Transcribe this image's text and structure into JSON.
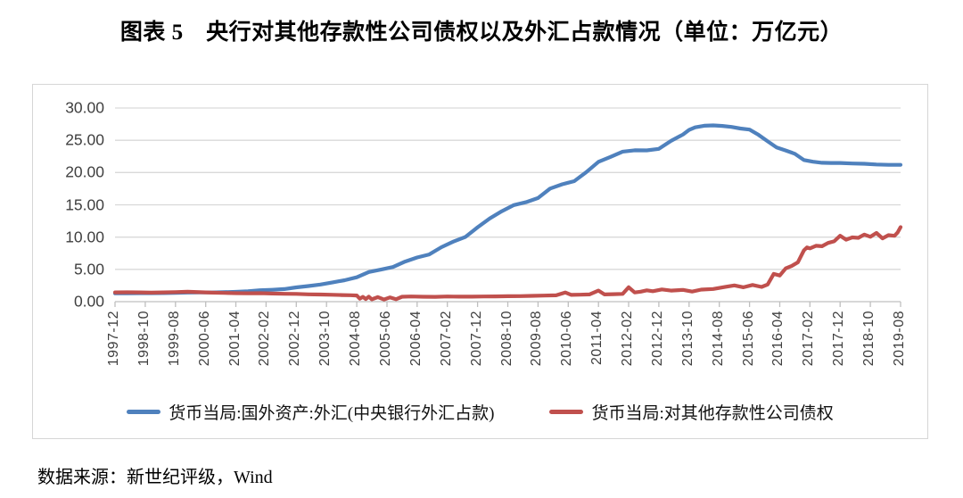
{
  "title": "图表 5　央行对其他存款性公司债权以及外汇占款情况（单位：万亿元）",
  "source": "数据来源：新世纪评级，Wind",
  "colors": {
    "series_fx_blue": "#4f81bd",
    "series_claims_red": "#c0504d",
    "gridline": "#d9d9d9",
    "axis": "#bfbfbf",
    "tick_label": "#3f3f3f"
  },
  "chart_data": {
    "type": "line",
    "title": "图表 5　央行对其他存款性公司债权以及外汇占款情况（单位：万亿元）",
    "unit": "万亿元",
    "xlabel": "",
    "ylabel": "",
    "ylim": [
      0,
      30
    ],
    "y_ticks": [
      "0.00",
      "5.00",
      "10.00",
      "15.00",
      "20.00",
      "25.00",
      "30.00"
    ],
    "grid": true,
    "legend_position": "bottom",
    "x_start": "1997-12",
    "x_end": "2019-08",
    "x_tick_interval_months": 10,
    "x_tick_labels": [
      "1997-12",
      "1998-10",
      "1999-08",
      "2000-06",
      "2001-04",
      "2002-02",
      "2002-12",
      "2003-10",
      "2004-08",
      "2005-06",
      "2006-04",
      "2007-02",
      "2007-12",
      "2008-10",
      "2009-08",
      "2010-06",
      "2011-04",
      "2012-02",
      "2012-12",
      "2013-10",
      "2014-08",
      "2015-06",
      "2016-04",
      "2017-02",
      "2017-12",
      "2018-10",
      "2019-08"
    ],
    "series": [
      {
        "name": "货币当局:国外资产:外汇(中央银行外汇占款)",
        "color": "#4f81bd",
        "points": [
          [
            "1997-12",
            1.28
          ],
          [
            "1998-04",
            1.3
          ],
          [
            "1998-08",
            1.31
          ],
          [
            "1998-12",
            1.31
          ],
          [
            "1999-04",
            1.33
          ],
          [
            "1999-08",
            1.36
          ],
          [
            "1999-12",
            1.41
          ],
          [
            "2000-04",
            1.42
          ],
          [
            "2000-08",
            1.42
          ],
          [
            "2000-12",
            1.47
          ],
          [
            "2001-04",
            1.52
          ],
          [
            "2001-08",
            1.62
          ],
          [
            "2001-12",
            1.77
          ],
          [
            "2002-04",
            1.84
          ],
          [
            "2002-08",
            1.95
          ],
          [
            "2002-12",
            2.21
          ],
          [
            "2003-04",
            2.42
          ],
          [
            "2003-08",
            2.66
          ],
          [
            "2003-12",
            2.98
          ],
          [
            "2004-04",
            3.32
          ],
          [
            "2004-08",
            3.78
          ],
          [
            "2004-12",
            4.59
          ],
          [
            "2005-04",
            4.97
          ],
          [
            "2005-08",
            5.36
          ],
          [
            "2005-12",
            6.21
          ],
          [
            "2006-04",
            6.84
          ],
          [
            "2006-08",
            7.32
          ],
          [
            "2006-12",
            8.44
          ],
          [
            "2007-04",
            9.3
          ],
          [
            "2007-08",
            10.04
          ],
          [
            "2007-12",
            11.52
          ],
          [
            "2008-04",
            12.88
          ],
          [
            "2008-08",
            14.01
          ],
          [
            "2008-12",
            14.96
          ],
          [
            "2009-04",
            15.4
          ],
          [
            "2009-08",
            16.05
          ],
          [
            "2009-12",
            17.51
          ],
          [
            "2010-04",
            18.18
          ],
          [
            "2010-08",
            18.66
          ],
          [
            "2010-12",
            20.08
          ],
          [
            "2011-04",
            21.66
          ],
          [
            "2011-08",
            22.42
          ],
          [
            "2011-12",
            23.24
          ],
          [
            "2012-04",
            23.45
          ],
          [
            "2012-08",
            23.44
          ],
          [
            "2012-12",
            23.67
          ],
          [
            "2013-04",
            24.9
          ],
          [
            "2013-08",
            25.9
          ],
          [
            "2013-10",
            26.6
          ],
          [
            "2013-12",
            27.0
          ],
          [
            "2014-03",
            27.25
          ],
          [
            "2014-06",
            27.3
          ],
          [
            "2014-09",
            27.22
          ],
          [
            "2014-12",
            27.07
          ],
          [
            "2015-03",
            26.82
          ],
          [
            "2015-06",
            26.66
          ],
          [
            "2015-09",
            25.84
          ],
          [
            "2015-12",
            24.85
          ],
          [
            "2016-03",
            23.88
          ],
          [
            "2016-06",
            23.42
          ],
          [
            "2016-09",
            22.91
          ],
          [
            "2016-12",
            21.94
          ],
          [
            "2017-03",
            21.68
          ],
          [
            "2017-06",
            21.51
          ],
          [
            "2017-09",
            21.49
          ],
          [
            "2017-12",
            21.48
          ],
          [
            "2018-04",
            21.4
          ],
          [
            "2018-08",
            21.36
          ],
          [
            "2018-12",
            21.25
          ],
          [
            "2019-04",
            21.2
          ],
          [
            "2019-08",
            21.19
          ]
        ]
      },
      {
        "name": "货币当局:对其他存款性公司债权",
        "color": "#c0504d",
        "points": [
          [
            "1997-12",
            1.44
          ],
          [
            "1998-04",
            1.45
          ],
          [
            "1998-08",
            1.44
          ],
          [
            "1998-12",
            1.4
          ],
          [
            "1999-04",
            1.44
          ],
          [
            "1999-08",
            1.48
          ],
          [
            "1999-12",
            1.54
          ],
          [
            "2000-04",
            1.46
          ],
          [
            "2000-08",
            1.39
          ],
          [
            "2000-12",
            1.35
          ],
          [
            "2001-04",
            1.32
          ],
          [
            "2001-08",
            1.3
          ],
          [
            "2001-12",
            1.31
          ],
          [
            "2002-04",
            1.26
          ],
          [
            "2002-08",
            1.22
          ],
          [
            "2002-12",
            1.2
          ],
          [
            "2003-04",
            1.14
          ],
          [
            "2003-08",
            1.1
          ],
          [
            "2003-12",
            1.06
          ],
          [
            "2004-03",
            1.02
          ],
          [
            "2004-06",
            0.99
          ],
          [
            "2004-08",
            0.96
          ],
          [
            "2004-09",
            0.45
          ],
          [
            "2004-10",
            0.74
          ],
          [
            "2004-11",
            0.4
          ],
          [
            "2004-12",
            0.78
          ],
          [
            "2005-01",
            0.36
          ],
          [
            "2005-03",
            0.7
          ],
          [
            "2005-05",
            0.33
          ],
          [
            "2005-07",
            0.67
          ],
          [
            "2005-09",
            0.38
          ],
          [
            "2005-11",
            0.76
          ],
          [
            "2006-02",
            0.8
          ],
          [
            "2006-06",
            0.76
          ],
          [
            "2006-10",
            0.74
          ],
          [
            "2007-02",
            0.8
          ],
          [
            "2007-06",
            0.78
          ],
          [
            "2007-10",
            0.77
          ],
          [
            "2008-02",
            0.8
          ],
          [
            "2008-06",
            0.82
          ],
          [
            "2008-10",
            0.84
          ],
          [
            "2009-02",
            0.86
          ],
          [
            "2009-06",
            0.9
          ],
          [
            "2009-10",
            0.94
          ],
          [
            "2010-02",
            0.98
          ],
          [
            "2010-05",
            1.42
          ],
          [
            "2010-07",
            1.05
          ],
          [
            "2010-10",
            1.08
          ],
          [
            "2011-01",
            1.12
          ],
          [
            "2011-04",
            1.72
          ],
          [
            "2011-06",
            1.12
          ],
          [
            "2011-09",
            1.16
          ],
          [
            "2011-12",
            1.2
          ],
          [
            "2012-02",
            2.22
          ],
          [
            "2012-04",
            1.42
          ],
          [
            "2012-06",
            1.55
          ],
          [
            "2012-08",
            1.75
          ],
          [
            "2012-10",
            1.62
          ],
          [
            "2013-01",
            1.9
          ],
          [
            "2013-04",
            1.72
          ],
          [
            "2013-08",
            1.82
          ],
          [
            "2013-11",
            1.56
          ],
          [
            "2014-02",
            1.86
          ],
          [
            "2014-06",
            1.96
          ],
          [
            "2014-10",
            2.3
          ],
          [
            "2015-01",
            2.52
          ],
          [
            "2015-04",
            2.22
          ],
          [
            "2015-07",
            2.58
          ],
          [
            "2015-10",
            2.28
          ],
          [
            "2015-12",
            2.66
          ],
          [
            "2016-02",
            4.3
          ],
          [
            "2016-04",
            4.05
          ],
          [
            "2016-06",
            5.16
          ],
          [
            "2016-08",
            5.55
          ],
          [
            "2016-10",
            6.1
          ],
          [
            "2016-12",
            7.95
          ],
          [
            "2017-01",
            8.4
          ],
          [
            "2017-02",
            8.25
          ],
          [
            "2017-04",
            8.65
          ],
          [
            "2017-06",
            8.59
          ],
          [
            "2017-08",
            9.1
          ],
          [
            "2017-10",
            9.35
          ],
          [
            "2017-12",
            10.22
          ],
          [
            "2018-02",
            9.6
          ],
          [
            "2018-04",
            9.95
          ],
          [
            "2018-06",
            9.89
          ],
          [
            "2018-08",
            10.4
          ],
          [
            "2018-10",
            10.05
          ],
          [
            "2018-12",
            10.65
          ],
          [
            "2019-02",
            9.8
          ],
          [
            "2019-04",
            10.3
          ],
          [
            "2019-06",
            10.2
          ],
          [
            "2019-07",
            10.7
          ],
          [
            "2019-08",
            11.55
          ]
        ]
      }
    ]
  }
}
